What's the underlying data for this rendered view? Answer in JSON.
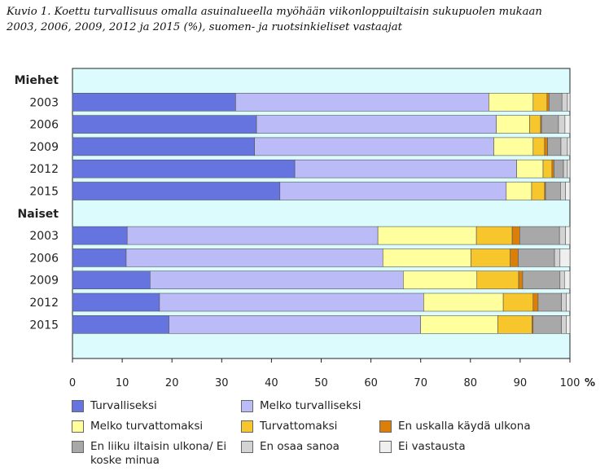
{
  "caption": {
    "line1": "Kuvio 1. Koettu turvallisuus omalla asuinalueella myöhään viikonloppuiltaisin sukupuolen mukaan",
    "line2": "2003, 2006, 2009, 2012 ja 2015 (%), suomen- ja ruotsinkieliset vastaajat"
  },
  "chart_data": {
    "type": "bar",
    "orientation": "horizontal",
    "stacked": true,
    "title": "Kuvio 1. Koettu turvallisuus omalla asuinalueella myöhään viikonloppuiltaisin sukupuolen mukaan 2003, 2006, 2009, 2012 ja 2015 (%), suomen- ja ruotsinkieliset vastaajat",
    "xlim": [
      0,
      100
    ],
    "xticks": [
      0,
      10,
      20,
      30,
      40,
      50,
      60,
      70,
      80,
      90,
      100
    ],
    "xunit": "%",
    "grid": false,
    "legend_position": "bottom",
    "rows": [
      {
        "label": "Miehet",
        "group": true
      },
      {
        "label": "2003",
        "values": [
          32.8,
          50.9,
          8.9,
          2.8,
          0.4,
          2.6,
          1.1,
          0.5
        ]
      },
      {
        "label": "2006",
        "values": [
          37.0,
          48.2,
          6.7,
          2.2,
          0.2,
          3.4,
          1.3,
          1.0
        ]
      },
      {
        "label": "2009",
        "values": [
          36.6,
          48.1,
          7.9,
          2.3,
          0.6,
          2.7,
          1.3,
          0.5
        ]
      },
      {
        "label": "2012",
        "values": [
          44.7,
          44.6,
          5.3,
          1.8,
          0.4,
          1.9,
          0.8,
          0.5
        ]
      },
      {
        "label": "2015",
        "values": [
          41.7,
          45.5,
          5.1,
          2.6,
          0.2,
          3.0,
          1.0,
          0.9
        ]
      },
      {
        "label": "Naiset",
        "group": true
      },
      {
        "label": "2003",
        "values": [
          11.0,
          50.4,
          19.8,
          7.2,
          1.5,
          8.0,
          1.2,
          0.9
        ]
      },
      {
        "label": "2006",
        "values": [
          10.8,
          51.6,
          17.7,
          7.9,
          1.6,
          7.3,
          1.1,
          2.0
        ]
      },
      {
        "label": "2009",
        "values": [
          15.6,
          50.9,
          14.8,
          8.4,
          0.8,
          7.5,
          0.9,
          1.1
        ]
      },
      {
        "label": "2012",
        "values": [
          17.5,
          53.1,
          16.0,
          6.0,
          1.0,
          4.7,
          1.0,
          0.7
        ]
      },
      {
        "label": "2015",
        "values": [
          19.4,
          50.6,
          15.5,
          6.9,
          0.2,
          5.7,
          1.0,
          0.7
        ]
      }
    ],
    "series": [
      {
        "name": "Turvalliseksi",
        "color": "#6674e0"
      },
      {
        "name": "Melko turvalliseksi",
        "color": "#bbbbf7"
      },
      {
        "name": "Melko turvattomaksi",
        "color": "#ffff9e"
      },
      {
        "name": "Turvattomaksi",
        "color": "#f7c52c"
      },
      {
        "name": "En uskalla käydä ulkona",
        "color": "#db7f09"
      },
      {
        "name": "En liiku iltaisin ulkona/ Ei koske minua",
        "color": "#a8a8a8"
      },
      {
        "name": "En osaa sanoa",
        "color": "#d3d3d3"
      },
      {
        "name": "Ei vastausta",
        "color": "#efefef"
      }
    ],
    "plot_background": "#dcfbfc"
  },
  "legend": {
    "line2_text": "Ei koske minua"
  }
}
